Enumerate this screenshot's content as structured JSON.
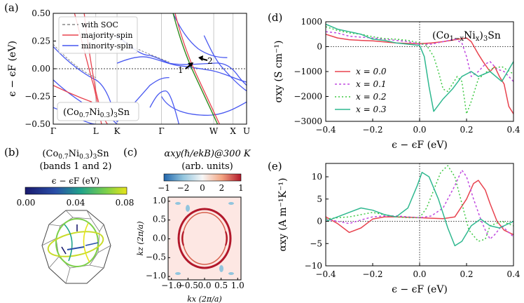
{
  "panel_labels": {
    "a": "(a)",
    "b": "(b)",
    "c": "(c)",
    "d": "(d)",
    "e": "(e)"
  },
  "colors": {
    "red": "#e8434f",
    "magenta": "#c04ae0",
    "green": "#3ec843",
    "teal": "#2fb88f",
    "blue": "#4757f0",
    "gray": "#888888",
    "soc_green": "#2e8b1e",
    "map_red": "#b2182b",
    "map_blue": "#2166ac"
  },
  "chart_data": [
    {
      "id": "a",
      "type": "line",
      "title": "",
      "ylabel": "ϵ − ϵF (eV)",
      "ylim": [
        -0.5,
        0.5
      ],
      "yticks": [
        "−0.50",
        "−0.25",
        "0.00",
        "0.25",
        "0.50"
      ],
      "ytick_values": [
        -0.5,
        -0.25,
        0.0,
        0.25,
        0.5
      ],
      "kpath_labels": [
        "Γ",
        "L",
        "K",
        "Γ",
        "W",
        "X",
        "U"
      ],
      "kpath_positions": [
        0.0,
        0.22,
        0.33,
        0.56,
        0.83,
        0.93,
        1.0
      ],
      "legend": [
        "with SOC",
        "majority-spin",
        "minority-spin"
      ],
      "annotation": "(Co0.7Ni0.3)3Sn",
      "annotation_parts": {
        "open": "(Co",
        "sub1": "0.7",
        "mid": "Ni",
        "sub2": "0.3",
        "close": ")",
        "sub3": "3",
        "tail": "Sn"
      },
      "arrows": [
        "1",
        "2"
      ]
    },
    {
      "id": "b",
      "type": "other",
      "title_line1": "(Co0.7Ni0.3)3Sn",
      "title_parts": {
        "open": "(Co",
        "sub1": "0.7",
        "mid": "Ni",
        "sub2": "0.3",
        "close": ")",
        "sub3": "3",
        "tail": "Sn"
      },
      "title_line2": "(bands 1 and 2)",
      "colorbar_label": "ϵ − ϵF (eV)",
      "colorbar_ticks": [
        "0.00",
        "0.04",
        "0.08"
      ]
    },
    {
      "id": "c",
      "type": "heatmap",
      "title_line1": "αxy(ℏ/ekB)@300 K",
      "title_line2": "(arb. units)",
      "colorbar_ticks": [
        "−1",
        "−2",
        "0",
        "2",
        "1"
      ],
      "xlabel": "kx (2π/a)",
      "ylabel": "kz (2π/a)",
      "xticks": [
        "−1.0",
        "−0.5",
        "0.0",
        "0.5",
        "1.0"
      ],
      "yticks": [
        "1.0",
        "0.5",
        "0.0",
        "−0.5",
        "−1.0"
      ],
      "tick_values": [
        -1.0,
        -0.5,
        0.0,
        0.5,
        1.0
      ]
    },
    {
      "id": "d",
      "type": "line",
      "annotation": "(Co1−xNix)3Sn",
      "annotation_parts": {
        "open": "(Co",
        "sub1": "1−x",
        "mid": "Ni",
        "sub2": "x",
        "close": ")",
        "sub3": "3",
        "tail": "Sn"
      },
      "xlabel": "ϵ − ϵF (eV)",
      "ylabel": "σxy (S cm⁻¹)",
      "xlim": [
        -0.4,
        0.4
      ],
      "ylim": [
        -3000,
        1000
      ],
      "xticks": [
        "−0.4",
        "−0.2",
        "0.0",
        "0.2",
        "0.4"
      ],
      "xtick_values": [
        -0.4,
        -0.2,
        0.0,
        0.2,
        0.4
      ],
      "yticks": [
        "1000",
        "0",
        "−1000",
        "−2000",
        "−3000"
      ],
      "ytick_values": [
        1000,
        0,
        -1000,
        -2000,
        -3000
      ],
      "legend": [
        "x = 0.0",
        "x = 0.1",
        "x = 0.2",
        "x = 0.3"
      ],
      "series": [
        {
          "name": "x = 0.0",
          "color": "#e8434f",
          "dash": "solid",
          "x": [
            -0.4,
            -0.35,
            -0.3,
            -0.25,
            -0.2,
            -0.15,
            -0.1,
            -0.05,
            0.0,
            0.05,
            0.1,
            0.15,
            0.2,
            0.22,
            0.25,
            0.27,
            0.3,
            0.32,
            0.34,
            0.36,
            0.38,
            0.4
          ],
          "y": [
            500,
            350,
            280,
            250,
            230,
            190,
            150,
            130,
            120,
            150,
            200,
            280,
            350,
            200,
            -300,
            -600,
            -1000,
            -800,
            -1200,
            -1500,
            -2400,
            -2700
          ]
        },
        {
          "name": "x = 0.1",
          "color": "#c04ae0",
          "dash": "3,3",
          "x": [
            -0.4,
            -0.35,
            -0.3,
            -0.25,
            -0.2,
            -0.15,
            -0.1,
            -0.05,
            0.0,
            0.05,
            0.1,
            0.15,
            0.18,
            0.2,
            0.22,
            0.25,
            0.28,
            0.3,
            0.33,
            0.36,
            0.4
          ],
          "y": [
            600,
            550,
            420,
            380,
            350,
            300,
            250,
            200,
            100,
            100,
            200,
            300,
            150,
            -400,
            -1200,
            -1000,
            -700,
            -600,
            -900,
            -1000,
            -1400
          ]
        },
        {
          "name": "x = 0.2",
          "color": "#3ec843",
          "dash": "2,3",
          "x": [
            -0.4,
            -0.35,
            -0.3,
            -0.25,
            -0.2,
            -0.15,
            -0.1,
            -0.05,
            0.0,
            0.03,
            0.06,
            0.08,
            0.1,
            0.12,
            0.14,
            0.16,
            0.18,
            0.2,
            0.22,
            0.25,
            0.3,
            0.35,
            0.4
          ],
          "y": [
            800,
            650,
            550,
            500,
            400,
            320,
            300,
            250,
            150,
            50,
            -400,
            -1000,
            -1700,
            -1800,
            -1500,
            -1200,
            -1400,
            -2700,
            -2200,
            -1300,
            -900,
            -800,
            -1100
          ]
        },
        {
          "name": "x = 0.3",
          "color": "#2fb88f",
          "dash": "solid",
          "x": [
            -0.4,
            -0.35,
            -0.3,
            -0.25,
            -0.2,
            -0.15,
            -0.1,
            -0.05,
            0.0,
            0.02,
            0.04,
            0.06,
            0.1,
            0.14,
            0.18,
            0.22,
            0.25,
            0.3,
            0.35,
            0.4
          ],
          "y": [
            900,
            700,
            600,
            500,
            300,
            250,
            150,
            100,
            50,
            -400,
            -1600,
            -2600,
            -2100,
            -1700,
            -1200,
            -1000,
            -1200,
            -1000,
            -1400,
            -600
          ]
        }
      ]
    },
    {
      "id": "e",
      "type": "line",
      "xlabel": "ϵ − ϵF (eV)",
      "ylabel": "αxy (A m⁻¹K⁻¹)",
      "xlim": [
        -0.4,
        0.4
      ],
      "ylim": [
        -10,
        13
      ],
      "xticks": [
        "−0.4",
        "−0.2",
        "0.0",
        "0.2",
        "0.4"
      ],
      "xtick_values": [
        -0.4,
        -0.2,
        0.0,
        0.2,
        0.4
      ],
      "yticks": [
        "10",
        "5",
        "0",
        "−5",
        "−10"
      ],
      "ytick_values": [
        10,
        5,
        0,
        -5,
        -10
      ],
      "series": [
        {
          "name": "x = 0.0",
          "color": "#e8434f",
          "dash": "solid",
          "x": [
            -0.4,
            -0.35,
            -0.3,
            -0.25,
            -0.2,
            -0.15,
            -0.1,
            -0.05,
            0.0,
            0.05,
            0.1,
            0.15,
            0.2,
            0.23,
            0.25,
            0.28,
            0.3,
            0.33,
            0.36,
            0.4
          ],
          "y": [
            1.0,
            -0.5,
            -2.5,
            -1.5,
            0.5,
            1.0,
            1.0,
            0.9,
            0.8,
            0.7,
            0.6,
            1.0,
            5.0,
            8.5,
            9.2,
            7.0,
            4.0,
            0.0,
            -2.0,
            -3.0
          ]
        },
        {
          "name": "x = 0.1",
          "color": "#c04ae0",
          "dash": "3,3",
          "x": [
            -0.4,
            -0.35,
            -0.3,
            -0.25,
            -0.2,
            -0.15,
            -0.1,
            -0.05,
            0.0,
            0.05,
            0.1,
            0.15,
            0.18,
            0.2,
            0.23,
            0.26,
            0.28,
            0.3,
            0.32,
            0.35,
            0.38,
            0.4
          ],
          "y": [
            0.5,
            0.0,
            -0.5,
            0.3,
            1.0,
            1.2,
            1.2,
            1.0,
            0.8,
            1.2,
            3.0,
            8.0,
            11.5,
            10.0,
            5.0,
            0.5,
            -2.0,
            -4.0,
            -3.0,
            -1.0,
            -2.5,
            -3.5
          ]
        },
        {
          "name": "x = 0.2",
          "color": "#3ec843",
          "dash": "2,3",
          "x": [
            -0.4,
            -0.35,
            -0.3,
            -0.25,
            -0.2,
            -0.15,
            -0.1,
            -0.05,
            0.0,
            0.03,
            0.06,
            0.09,
            0.12,
            0.15,
            0.18,
            0.21,
            0.25,
            0.28,
            0.3,
            0.35,
            0.4
          ],
          "y": [
            0.5,
            0.8,
            1.0,
            1.5,
            2.0,
            1.5,
            1.0,
            0.8,
            0.8,
            3.0,
            7.0,
            11.0,
            12.5,
            10.0,
            4.0,
            -2.0,
            -4.5,
            -4.0,
            -1.0,
            0.0,
            -1.0
          ]
        },
        {
          "name": "x = 0.3",
          "color": "#2fb88f",
          "dash": "solid",
          "x": [
            -0.4,
            -0.35,
            -0.3,
            -0.25,
            -0.2,
            -0.15,
            -0.1,
            -0.05,
            -0.01,
            0.01,
            0.04,
            0.08,
            0.12,
            0.15,
            0.18,
            0.22,
            0.26,
            0.3,
            0.34,
            0.38,
            0.4
          ],
          "y": [
            0.0,
            1.0,
            2.0,
            3.0,
            2.5,
            1.5,
            1.0,
            3.0,
            8.0,
            11.0,
            10.0,
            5.0,
            -1.5,
            -5.5,
            -4.5,
            -1.0,
            0.5,
            -1.0,
            -1.5,
            -0.5,
            0.0
          ]
        }
      ]
    }
  ]
}
